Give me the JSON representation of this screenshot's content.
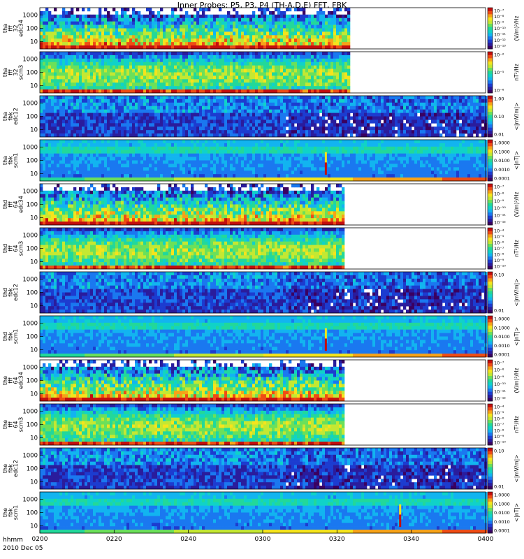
{
  "title": "Inner Probes: P5, P3, P4 (TH-A,D,E) FFT, FBK",
  "footer": {
    "row1": "hhmm",
    "row2": "2010 Dec 05"
  },
  "chart_data": {
    "type": "heatmap",
    "x_ticks": [
      "0200",
      "0220",
      "0240",
      "0300",
      "0320",
      "0340",
      "0400"
    ],
    "y_ticks": [
      "1000",
      "100",
      "10"
    ],
    "panels": [
      {
        "id": "tha-fff32-edc34",
        "probe": "tha",
        "ylabel": [
          "tha",
          "fff",
          "32",
          "edc34"
        ],
        "cb_ticks": [
          "10⁻⁷",
          "10⁻⁸",
          "10⁻⁹",
          "10⁻¹⁰",
          "10⁻¹¹",
          "10⁻¹²",
          "10⁻¹³"
        ],
        "cb_unit": "(V/m)²/Hz",
        "data_end": "0323",
        "kind": "edc-fff"
      },
      {
        "id": "tha-fff32-scm3",
        "probe": "tha",
        "ylabel": [
          "tha",
          "fff",
          "32",
          "scm3"
        ],
        "cb_ticks": [
          "10⁻²",
          "10⁻⁵",
          "10⁻⁸"
        ],
        "cb_unit": "nT²/Hz",
        "data_end": "0323",
        "kind": "scm-fff"
      },
      {
        "id": "tha-fbk-edc12",
        "probe": "tha",
        "ylabel": [
          "tha",
          "fbk",
          "edc12"
        ],
        "cb_ticks": [
          "1.00",
          "0.10",
          "0.01"
        ],
        "cb_unit": "<|mV/m|>",
        "data_end": "0400",
        "kind": "fbk-e"
      },
      {
        "id": "tha-fbk-scm1",
        "probe": "tha",
        "ylabel": [
          "tha",
          "fbk",
          "scm1"
        ],
        "cb_ticks": [
          "1.0000",
          "0.1000",
          "0.0100",
          "0.0010",
          "0.0001"
        ],
        "cb_unit": "<|nT|>",
        "data_end": "0400",
        "kind": "fbk-b",
        "spike_at": "0317"
      },
      {
        "id": "thd-fff64-edc34",
        "probe": "thd",
        "ylabel": [
          "thd",
          "fff",
          "64",
          "edc34"
        ],
        "cb_ticks": [
          "10⁻⁷",
          "10⁻⁸",
          "10⁻⁹",
          "10⁻¹⁰",
          "10⁻¹¹",
          "10⁻¹²"
        ],
        "cb_unit": "(V/m)²/Hz",
        "data_end": "0322",
        "kind": "edc-fff"
      },
      {
        "id": "thd-fff64-scm3",
        "probe": "thd",
        "ylabel": [
          "thd",
          "fff",
          "64",
          "scm3"
        ],
        "cb_ticks": [
          "10⁻⁴",
          "10⁻⁵",
          "10⁻⁶",
          "10⁻⁷",
          "10⁻⁸",
          "10⁻⁹",
          "10⁻¹⁰"
        ],
        "cb_unit": "nT²/Hz",
        "data_end": "0322",
        "kind": "scm-fff"
      },
      {
        "id": "thd-fbk-edc12",
        "probe": "thd",
        "ylabel": [
          "thd",
          "fbk",
          "edc12"
        ],
        "cb_ticks": [
          "0.10",
          "0.01"
        ],
        "cb_unit": "<|mV/m|>",
        "data_end": "0400",
        "kind": "fbk-e"
      },
      {
        "id": "thd-fbk-scm1",
        "probe": "thd",
        "ylabel": [
          "thd",
          "fbk",
          "scm1"
        ],
        "cb_ticks": [
          "1.0000",
          "0.1000",
          "0.0100",
          "0.0010",
          "0.0001"
        ],
        "cb_unit": "<|nT|>",
        "data_end": "0400",
        "kind": "fbk-b",
        "spike_at": "0317"
      },
      {
        "id": "the-fff64-edc34",
        "probe": "the",
        "ylabel": [
          "the",
          "fff",
          "64",
          "edc34"
        ],
        "cb_ticks": [
          "10⁻⁷",
          "10⁻⁸",
          "10⁻⁹",
          "10⁻¹⁰",
          "10⁻¹¹",
          "10⁻¹²"
        ],
        "cb_unit": "(V/m)²/Hz",
        "data_end": "0322",
        "kind": "edc-fff"
      },
      {
        "id": "the-fff64-scm3",
        "probe": "the",
        "ylabel": [
          "the",
          "fff",
          "64",
          "scm3"
        ],
        "cb_ticks": [
          "10⁻⁴",
          "10⁻⁵",
          "10⁻⁶",
          "10⁻⁷",
          "10⁻⁸",
          "10⁻⁹",
          "10⁻¹⁰"
        ],
        "cb_unit": "nT²/Hz",
        "data_end": "0322",
        "kind": "scm-fff"
      },
      {
        "id": "the-fbk-edc12",
        "probe": "the",
        "ylabel": [
          "the",
          "fbk",
          "edc12"
        ],
        "cb_ticks": [
          "0.10",
          "0.01"
        ],
        "cb_unit": "<|mV/m|>",
        "data_end": "0400",
        "kind": "fbk-e"
      },
      {
        "id": "the-fbk-scm1",
        "probe": "the",
        "ylabel": [
          "the",
          "fbk",
          "scm1"
        ],
        "cb_ticks": [
          "1.0000",
          "0.1000",
          "0.0100",
          "0.0010",
          "0.0001"
        ],
        "cb_unit": "<|nT|>",
        "data_end": "0400",
        "kind": "fbk-b",
        "spike_at": "0337"
      }
    ]
  },
  "colors": {
    "palette": [
      "#3a0060",
      "#2a1c9c",
      "#1c3cd0",
      "#1a78f0",
      "#12b4f0",
      "#10d2c8",
      "#22d89a",
      "#6be05a",
      "#c4e832",
      "#f5e41c",
      "#f7a218",
      "#ef4c14",
      "#c40e0e"
    ]
  }
}
